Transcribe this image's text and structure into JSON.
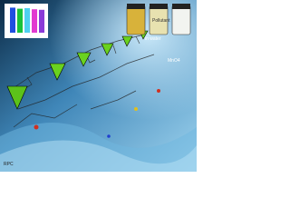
{
  "labels": {
    "water": "in water",
    "vial": "Pollutant",
    "ion": "MnO4",
    "corner": "RPC"
  },
  "inset": {
    "bars": [
      {
        "color": "#1f4fe0",
        "value": 92
      },
      {
        "color": "#19c23a",
        "value": 88
      },
      {
        "color": "#4fd0f0",
        "value": 90
      },
      {
        "color": "#e23ad0",
        "value": 86
      },
      {
        "color": "#8a3ad8",
        "value": 84
      }
    ],
    "ylim": [
      0,
      100
    ]
  }
}
